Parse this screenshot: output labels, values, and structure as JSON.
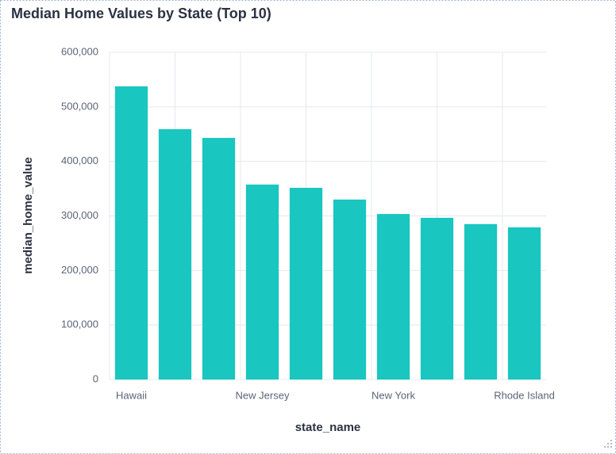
{
  "chart_data": {
    "type": "bar",
    "title": "Median Home Values by State (Top 10)",
    "x_label": "state_name",
    "y_label": "median_home_value",
    "categories": [
      "Hawaii",
      null,
      null,
      "New Jersey",
      null,
      null,
      "New York",
      null,
      null,
      "Rhode Island"
    ],
    "values": [
      537500,
      459000,
      443000,
      357500,
      351500,
      330000,
      303500,
      296500,
      285000,
      279000
    ],
    "color": "#19c6c0",
    "ylim": [
      0,
      600000
    ],
    "yticks": [
      0,
      {
        "value": 100000,
        "label": "100,000"
      },
      {
        "value": 200000,
        "label": "200,000"
      },
      {
        "value": 300000,
        "label": "300,000"
      },
      {
        "value": 400000,
        "label": "400,000"
      },
      {
        "value": 500000,
        "label": "500,000"
      },
      {
        "value": 600000,
        "label": "600,000"
      }
    ],
    "grid": true
  }
}
